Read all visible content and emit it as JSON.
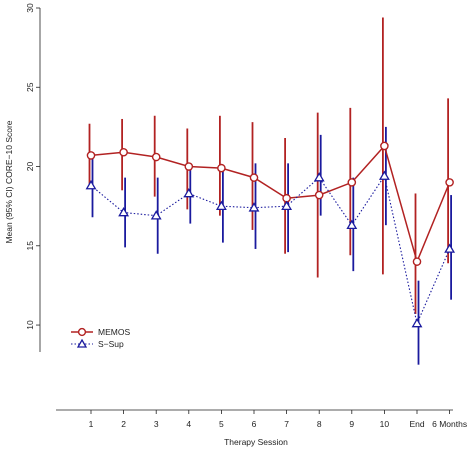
{
  "chart_data": {
    "type": "line",
    "title": "",
    "xlabel": "Therapy Session",
    "ylabel": "Mean (95% CI) CORE−10 Score",
    "categories": [
      "1",
      "2",
      "3",
      "4",
      "5",
      "6",
      "7",
      "8",
      "9",
      "10",
      "End",
      "6 Months"
    ],
    "yticks": [
      "10",
      "15",
      "20",
      "25",
      "30"
    ],
    "ylim": [
      8.3,
      30
    ],
    "grid": false,
    "legend_position": "bottom-left",
    "series": [
      {
        "name": "MEMOS",
        "color": "#b22222",
        "marker": "circle",
        "line_style": "solid",
        "values": [
          20.7,
          20.9,
          20.6,
          20.0,
          19.9,
          19.3,
          18.0,
          18.2,
          19.0,
          21.3,
          14.0,
          19.0
        ],
        "ci_low": [
          18.6,
          18.5,
          18.1,
          17.3,
          16.9,
          16.0,
          14.5,
          13.0,
          14.4,
          13.2,
          10.7,
          13.9
        ],
        "ci_high": [
          22.7,
          23.0,
          23.2,
          22.4,
          23.2,
          22.8,
          21.8,
          23.4,
          23.7,
          29.4,
          18.3,
          24.3
        ]
      },
      {
        "name": "S−Sup",
        "color": "#1a1a9e",
        "marker": "triangle",
        "line_style": "dotted",
        "values": [
          18.8,
          17.1,
          16.9,
          18.3,
          17.5,
          17.4,
          17.5,
          19.3,
          16.3,
          19.4,
          10.1,
          14.8
        ],
        "ci_low": [
          16.8,
          14.9,
          14.5,
          16.4,
          15.2,
          14.8,
          14.6,
          16.9,
          13.4,
          16.3,
          7.5,
          11.6
        ],
        "ci_high": [
          20.8,
          19.3,
          19.3,
          20.2,
          19.9,
          20.2,
          20.2,
          22.0,
          19.3,
          22.5,
          12.8,
          18.2
        ]
      }
    ]
  }
}
